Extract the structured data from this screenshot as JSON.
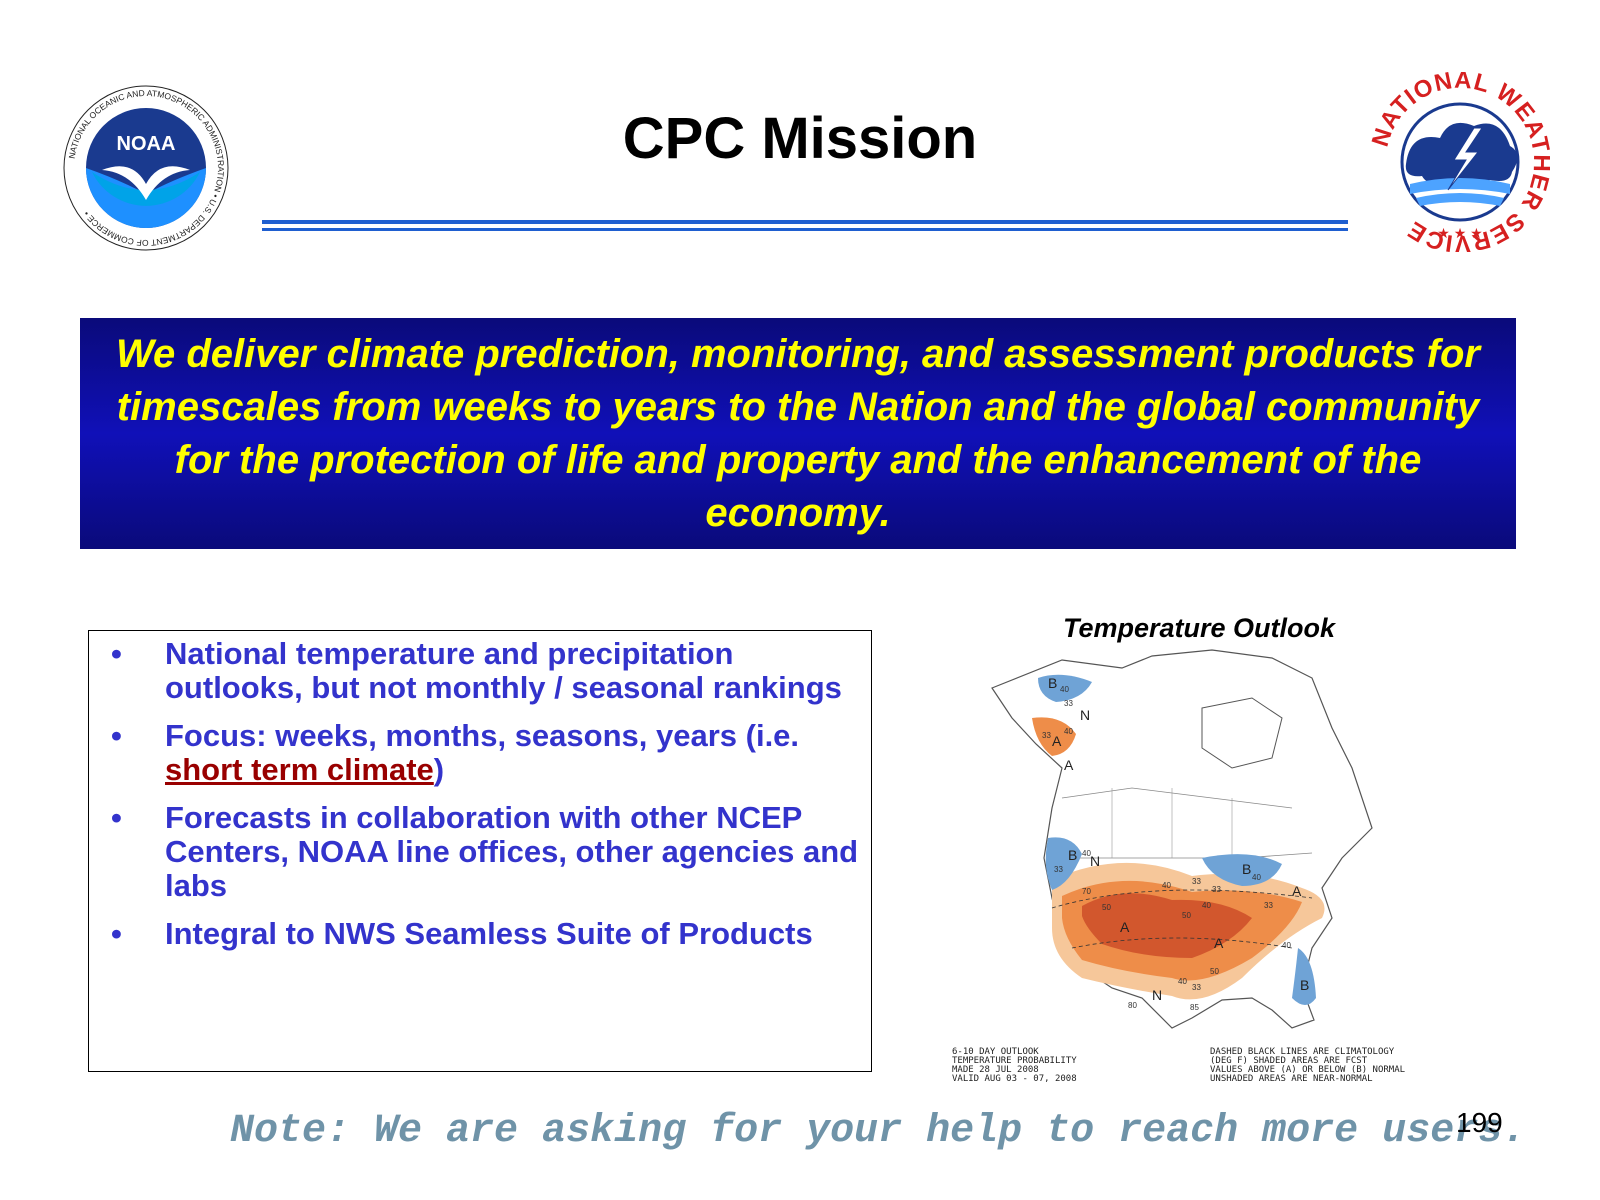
{
  "slide": {
    "title": "CPC Mission",
    "mission": "We deliver climate prediction, monitoring, and assessment products for timescales from weeks to years to the Nation and the global community for the protection of life and property and the enhancement of the economy.",
    "bullets": [
      {
        "text": "National temperature and precipitation outlooks, but not monthly / seasonal rankings"
      },
      {
        "text_before": "Focus: weeks, months, seasons, years (i.e. ",
        "link": "short term climate",
        "text_after": ")"
      },
      {
        "text": "Forecasts in collaboration with other NCEP Centers, NOAA line offices, other agencies and labs"
      },
      {
        "text": "Integral to NWS Seamless Suite of Products"
      }
    ],
    "bullet_symbol": "•",
    "map": {
      "title": "Temperature Outlook",
      "legend_left": [
        "6-10 DAY OUTLOOK",
        "TEMPERATURE PROBABILITY",
        "MADE   28 JUL 2008",
        "VALID   AUG 03 - 07, 2008"
      ],
      "legend_right": [
        "DASHED BLACK LINES ARE CLIMATOLOGY",
        "(DEG F) SHADED AREAS ARE FCST",
        "VALUES ABOVE (A) OR BELOW (B) NORMAL",
        "UNSHADED AREAS ARE NEAR-NORMAL"
      ],
      "letters": [
        "B",
        "N",
        "A",
        "A",
        "B",
        "N",
        "A",
        "A",
        "A",
        "B",
        "N",
        "B"
      ],
      "numbers": [
        "40",
        "33",
        "40",
        "33",
        "40",
        "33",
        "70",
        "50",
        "40",
        "33",
        "50",
        "40",
        "33",
        "40",
        "33",
        "50",
        "40",
        "33",
        "40",
        "85",
        "80"
      ],
      "colors": {
        "above_dark": "#d2572d",
        "above_mid": "#ee8d49",
        "above_light": "#f6c79a",
        "below": "#6fa3d6"
      }
    },
    "note": "Note: We are asking for your help to reach more users.",
    "page_number": "199",
    "logos": {
      "noaa": {
        "icon": "noaa-logo-icon",
        "center": "NOAA",
        "ring": "NATIONAL OCEANIC AND ATMOSPHERIC ADMINISTRATION • U.S. DEPARTMENT OF COMMERCE •"
      },
      "nws": {
        "icon": "nws-logo-icon",
        "ring": "NATIONAL WEATHER SERVICE"
      }
    }
  }
}
